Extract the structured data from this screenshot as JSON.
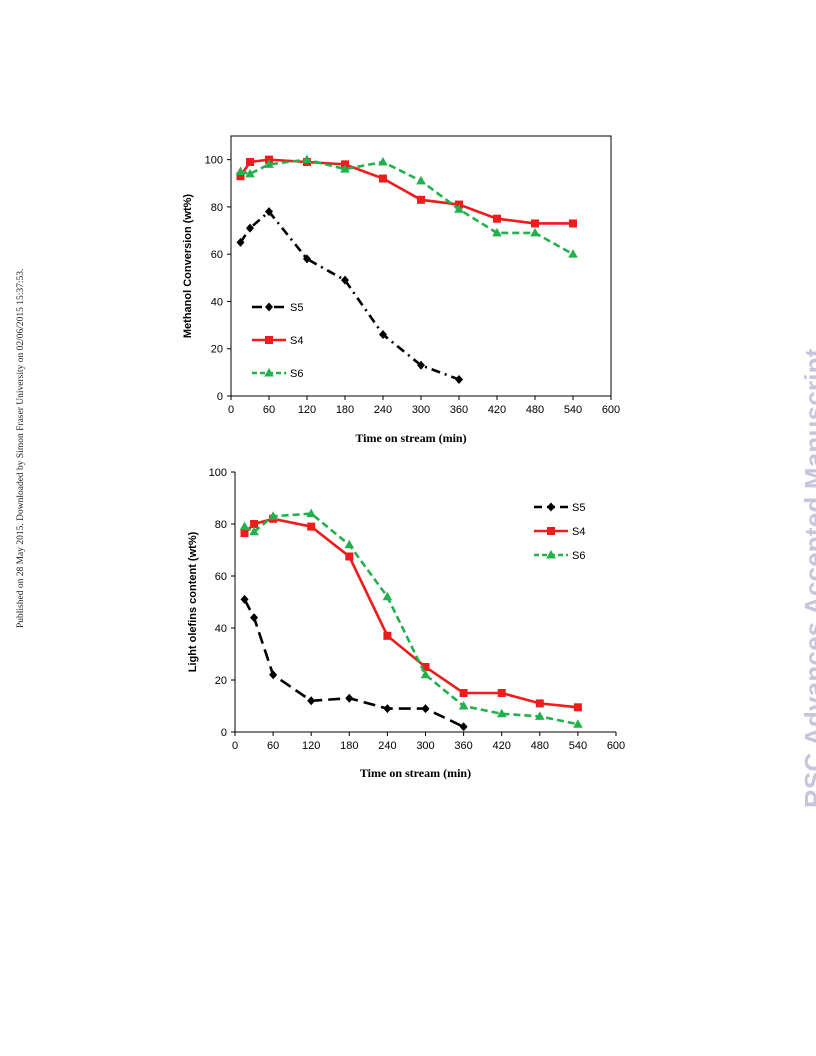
{
  "side_note": "Published on 28 May 2015. Downloaded by Simon Fraser University on 02/06/2015 15:37:53.",
  "watermark": "RSC Advances Accepted Manuscript",
  "chart_data": [
    {
      "type": "line",
      "xlabel": "Time on stream (min)",
      "ylabel": "Methanol Conversion (wt%)",
      "xlim": [
        0,
        600
      ],
      "ylim": [
        0,
        110
      ],
      "xticks": [
        0,
        60,
        120,
        180,
        240,
        300,
        360,
        420,
        480,
        540,
        600
      ],
      "yticks": [
        0,
        20,
        40,
        60,
        80,
        100
      ],
      "legend_position": "left",
      "series": [
        {
          "name": "S5",
          "color": "#000000",
          "marker": "diamond",
          "dash": "dashdot",
          "x": [
            15,
            30,
            60,
            120,
            180,
            240,
            300,
            360
          ],
          "y": [
            65,
            71,
            78,
            58,
            49,
            26,
            13,
            7
          ]
        },
        {
          "name": "S4",
          "color": "#ee1c1c",
          "marker": "square",
          "dash": "solid",
          "x": [
            15,
            30,
            60,
            120,
            180,
            240,
            300,
            360,
            420,
            480,
            540
          ],
          "y": [
            93,
            99,
            100,
            99,
            98,
            92,
            83,
            81,
            75,
            73,
            73
          ]
        },
        {
          "name": "S6",
          "color": "#22b14c",
          "marker": "triangle",
          "dash": "dashed",
          "x": [
            15,
            30,
            60,
            120,
            180,
            240,
            300,
            360,
            420,
            480,
            540
          ],
          "y": [
            95,
            94,
            98,
            100,
            96,
            99,
            91,
            79,
            69,
            69,
            60
          ]
        }
      ]
    },
    {
      "type": "line",
      "xlabel": "Time on stream (min)",
      "ylabel": "Light olefins content (wt%)",
      "xlim": [
        0,
        600
      ],
      "ylim": [
        0,
        100
      ],
      "xticks": [
        0,
        60,
        120,
        180,
        240,
        300,
        360,
        420,
        480,
        540,
        600
      ],
      "yticks": [
        0,
        20,
        40,
        60,
        80,
        100
      ],
      "legend_position": "top-right",
      "series": [
        {
          "name": "S5",
          "color": "#000000",
          "marker": "diamond",
          "dash": "longdash",
          "x": [
            15,
            30,
            60,
            120,
            180,
            240,
            300,
            360
          ],
          "y": [
            51,
            44,
            22,
            12,
            13,
            9,
            9,
            2
          ]
        },
        {
          "name": "S4",
          "color": "#ee1c1c",
          "marker": "square",
          "dash": "solid",
          "x": [
            15,
            30,
            60,
            120,
            180,
            240,
            300,
            360,
            420,
            480,
            540
          ],
          "y": [
            76.5,
            80,
            82,
            79,
            67.5,
            37,
            25,
            15,
            15,
            11,
            9.5
          ]
        },
        {
          "name": "S6",
          "color": "#22b14c",
          "marker": "triangle",
          "dash": "dashed",
          "x": [
            15,
            30,
            60,
            120,
            180,
            240,
            300,
            360,
            420,
            480,
            540
          ],
          "y": [
            79,
            77,
            83,
            84,
            72,
            52,
            22,
            10,
            7,
            6,
            3
          ]
        }
      ]
    }
  ]
}
